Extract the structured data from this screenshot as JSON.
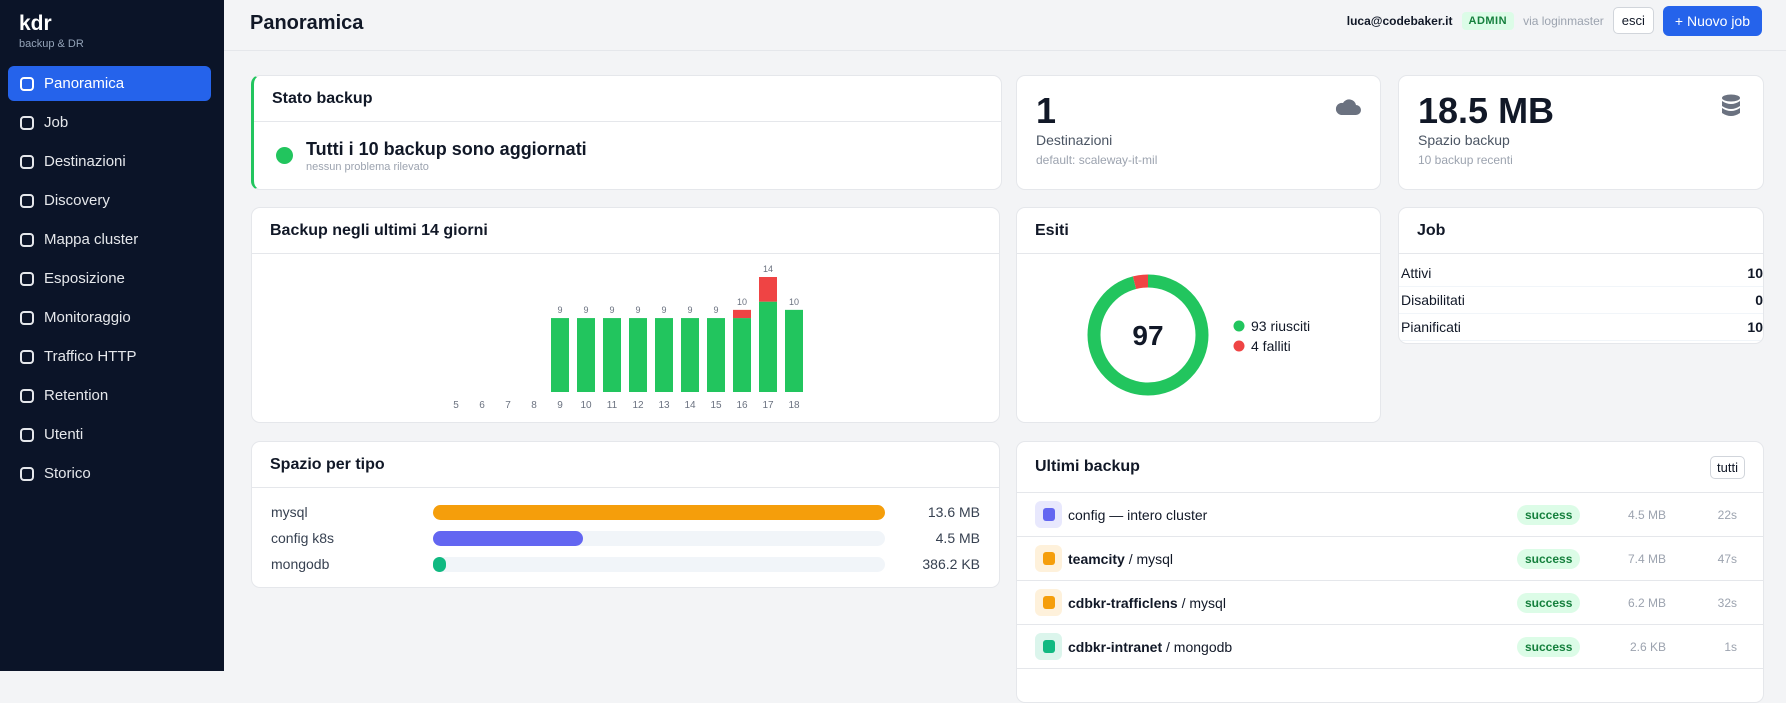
{
  "sidebar": {
    "brand": "kdr",
    "tagline": "backup & DR",
    "active": 0,
    "nav": [
      "Panoramica",
      "Job",
      "Destinazioni",
      "Discovery",
      "Mappa cluster",
      "Esposizione",
      "Monitoraggio",
      "Traffico HTTP",
      "Retention",
      "Utenti",
      "Storico"
    ]
  },
  "header": {
    "title": "Panoramica",
    "user": "luca@codebaker.it",
    "role": "ADMIN",
    "via": "via loginmaster",
    "logout": "esci",
    "new_job": "+ Nuovo job"
  },
  "status": {
    "title": "Stato backup",
    "message": "Tutti i 10 backup sono aggiornati",
    "detail": "nessun problema rilevato"
  },
  "destinations": {
    "value": "1",
    "label": "Destinazioni",
    "detail": "default: scaleway-it-mil"
  },
  "storage": {
    "value": "18.5 MB",
    "label": "Spazio backup",
    "detail": "10 backup recenti"
  },
  "backups_chart": {
    "type": "bar",
    "stacked": true,
    "title": "Backup negli ultimi 14 giorni",
    "categories": [
      "5",
      "6",
      "7",
      "8",
      "9",
      "10",
      "11",
      "12",
      "13",
      "14",
      "15",
      "16",
      "17",
      "18"
    ],
    "series": [
      {
        "color": "#22c55e",
        "values": [
          0,
          0,
          0,
          0,
          9,
          9,
          9,
          9,
          9,
          9,
          9,
          9,
          11,
          10
        ]
      },
      {
        "color": "#ef4444",
        "values": [
          0,
          0,
          0,
          0,
          0,
          0,
          0,
          0,
          0,
          0,
          0,
          1,
          3,
          0
        ]
      }
    ],
    "totals": [
      null,
      null,
      null,
      null,
      9,
      9,
      9,
      9,
      9,
      9,
      9,
      10,
      14,
      10
    ]
  },
  "outcomes": {
    "type": "donut",
    "title": "Esiti",
    "total": 97,
    "values": [
      93,
      4
    ],
    "labels": [
      "93 riusciti",
      "4 falliti"
    ],
    "colors": [
      "#22c55e",
      "#ef4444"
    ]
  },
  "jobs": {
    "title": "Job",
    "rows": [
      [
        "Attivi",
        10
      ],
      [
        "Disabilitati",
        0
      ],
      [
        "Pianificati",
        10
      ]
    ]
  },
  "space_by_type": {
    "type": "bar",
    "orientation": "horizontal",
    "title": "Spazio per tipo",
    "categories": [
      "mysql",
      "config k8s",
      "mongodb"
    ],
    "values": [
      13.6,
      4.5,
      0.3862
    ],
    "value_labels": [
      "13.6 MB",
      "4.5 MB",
      "386.2 KB"
    ],
    "colors": [
      "#f59e0b",
      "#6366f1",
      "#10b981"
    ]
  },
  "recent": {
    "title": "Ultimi backup",
    "all_button": "tutti",
    "rows": [
      {
        "name": "config — intero cluster",
        "status": "success",
        "size": "4.5 MB",
        "duration": "22s",
        "icon_color": "#6366f1"
      },
      {
        "name": "teamcity",
        "target": "/ mysql",
        "status": "success",
        "size": "7.4 MB",
        "duration": "47s",
        "icon_color": "#f59e0b"
      },
      {
        "name": "cdbkr-trafficlens",
        "target": "/ mysql",
        "status": "success",
        "size": "6.2 MB",
        "duration": "32s",
        "icon_color": "#f59e0b"
      },
      {
        "name": "cdbkr-intranet",
        "target": "/ mongodb",
        "status": "success",
        "size": "2.6 KB",
        "duration": "1s",
        "icon_color": "#10b981"
      }
    ]
  }
}
